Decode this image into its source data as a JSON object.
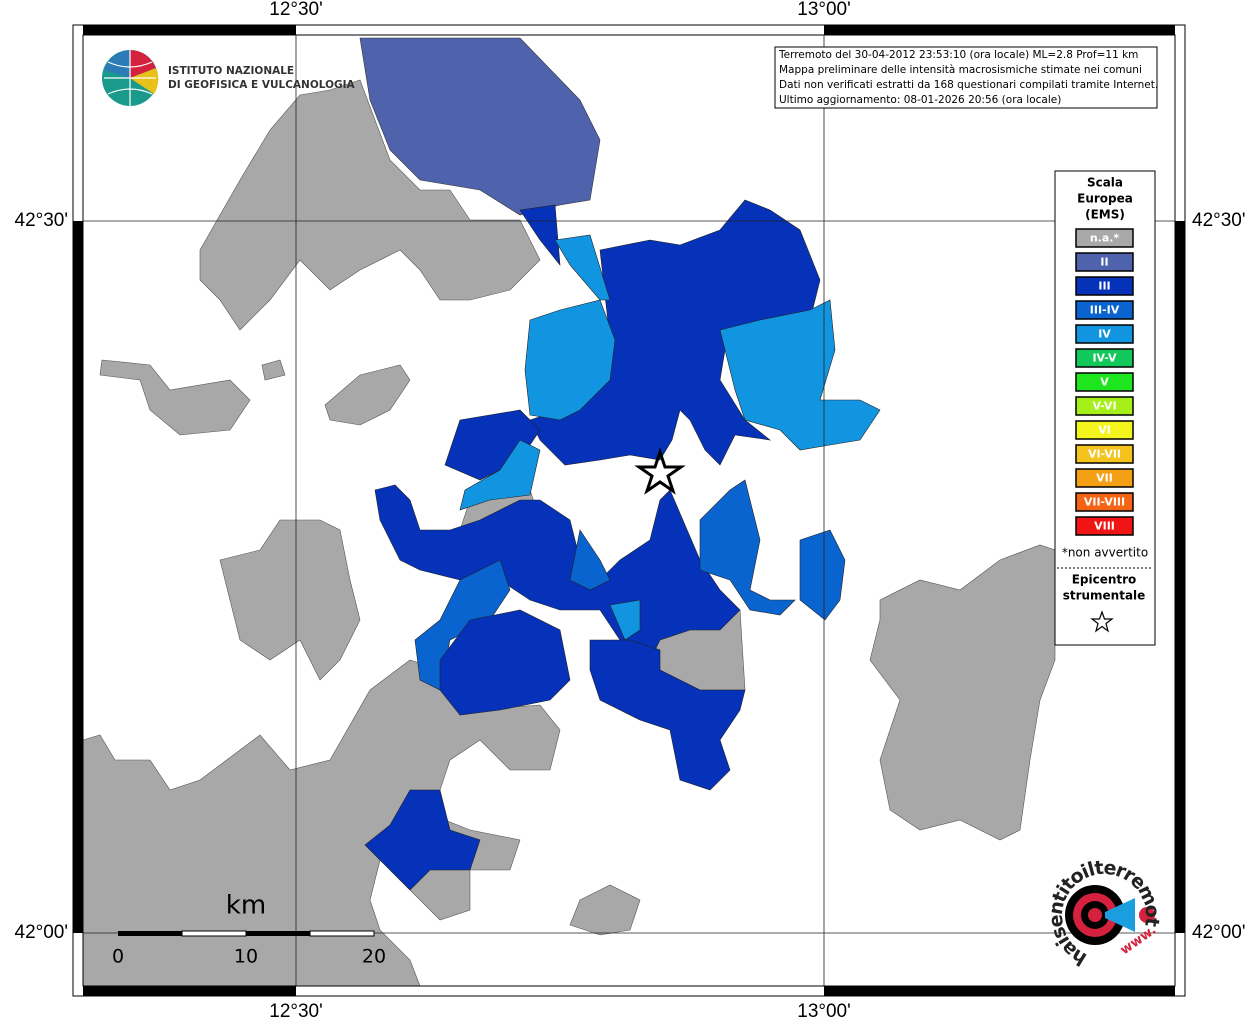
{
  "frame": {
    "top_labels": [
      "12°30'",
      "13°00'"
    ],
    "bottom_labels": [
      "12°30'",
      "13°00'"
    ],
    "left_labels": [
      "42°30'",
      "42°00'"
    ],
    "right_labels": [
      "42°30'",
      "42°00'"
    ]
  },
  "logo": {
    "line1": "ISTITUTO NAZIONALE",
    "line2": "DI GEOFISICA E VULCANOLOGIA"
  },
  "info": {
    "lines": [
      "Terremoto del 30-04-2012 23:53:10 (ora locale) ML=2.8 Prof=11 km",
      "Mappa preliminare delle intensità macrosismiche stimate nei comuni",
      "Dati non verificati estratti da 168 questionari compilati tramite Internet.",
      "Ultimo aggiornamento: 08-01-2026 20:56 (ora locale)"
    ]
  },
  "legend": {
    "title": [
      "Scala",
      "Europea",
      "(EMS)"
    ],
    "classes": [
      {
        "label": "n.a.*",
        "color": "#a8a8a8"
      },
      {
        "label": "II",
        "color": "#4f63ad"
      },
      {
        "label": "III",
        "color": "#0532b8"
      },
      {
        "label": "III-IV",
        "color": "#0a64d0"
      },
      {
        "label": "IV",
        "color": "#1295e0"
      },
      {
        "label": "IV-V",
        "color": "#13c85a"
      },
      {
        "label": "V",
        "color": "#1ee61e"
      },
      {
        "label": "V-VI",
        "color": "#a6f01a"
      },
      {
        "label": "VI",
        "color": "#f5f51e"
      },
      {
        "label": "VI-VII",
        "color": "#f5c31e"
      },
      {
        "label": "VII",
        "color": "#f5a014"
      },
      {
        "label": "VII-VIII",
        "color": "#f56414"
      },
      {
        "label": "VIII",
        "color": "#f01414"
      }
    ],
    "note": "*non avvertito",
    "epicenter": [
      "Epicentro",
      "strumentale"
    ]
  },
  "scale_bar": {
    "unit": "km",
    "labels": [
      "0",
      "10",
      "20"
    ]
  },
  "site_logo": {
    "text": "haisentitoilterremoto.it",
    "prefix": "www."
  }
}
